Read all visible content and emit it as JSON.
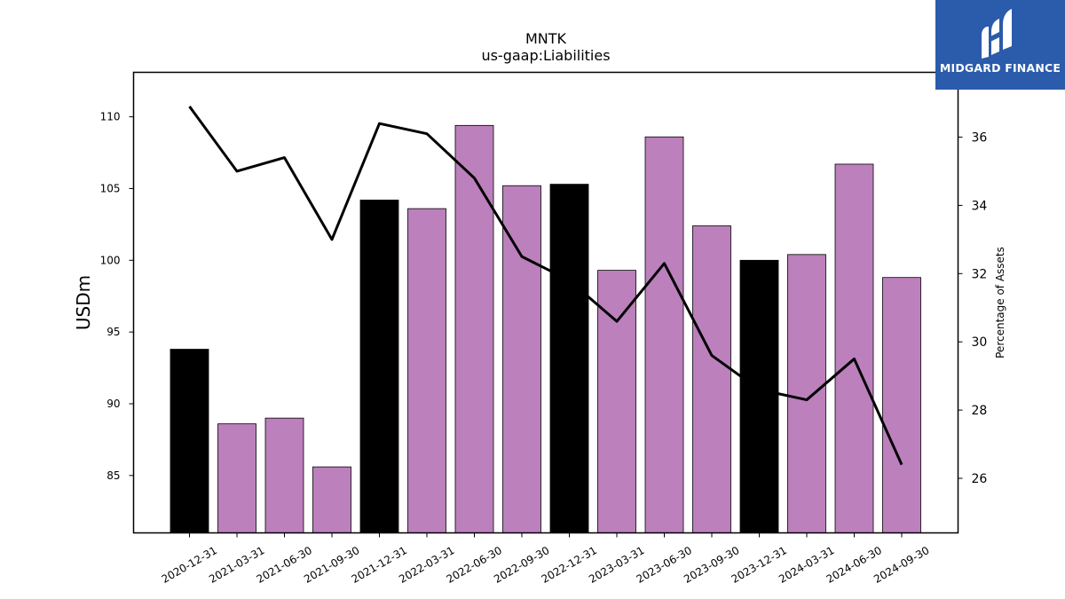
{
  "brand": {
    "name": "MIDGARD FINANCE",
    "color": "#2b5bab"
  },
  "chart_data": {
    "type": "bar",
    "title": "MNTK",
    "subtitle": "us-gaap:Liabilities",
    "ylabel": "USDm",
    "y2label": "Percentage of Assets",
    "categories": [
      "2020-12-31",
      "2021-03-31",
      "2021-06-30",
      "2021-09-30",
      "2021-12-31",
      "2022-03-31",
      "2022-06-30",
      "2022-09-30",
      "2022-12-31",
      "2023-03-31",
      "2023-06-30",
      "2023-09-30",
      "2023-12-31",
      "2024-03-31",
      "2024-06-30",
      "2024-09-30"
    ],
    "series": [
      {
        "axis": "left",
        "type": "bar",
        "values": [
          93.8,
          88.6,
          89.0,
          85.6,
          104.2,
          103.6,
          109.4,
          105.2,
          105.3,
          99.3,
          108.6,
          102.4,
          100.0,
          100.4,
          106.7,
          98.8
        ],
        "colors": [
          "#000000",
          "#bc80bd",
          "#bc80bd",
          "#bc80bd",
          "#000000",
          "#bc80bd",
          "#bc80bd",
          "#bc80bd",
          "#000000",
          "#bc80bd",
          "#bc80bd",
          "#bc80bd",
          "#000000",
          "#bc80bd",
          "#bc80bd",
          "#bc80bd"
        ]
      },
      {
        "axis": "right",
        "type": "line",
        "color": "#000000",
        "values": [
          36.9,
          35.0,
          35.4,
          33.0,
          36.4,
          36.1,
          34.8,
          32.5,
          31.8,
          30.6,
          32.3,
          29.6,
          28.6,
          28.3,
          29.5,
          26.4
        ]
      }
    ],
    "ylim": [
      81.0,
      113.1
    ],
    "y2lim": [
      24.4,
      37.9
    ],
    "yticks": [
      85,
      90,
      95,
      100,
      105,
      110
    ],
    "y2ticks": [
      26,
      28,
      30,
      32,
      34,
      36
    ],
    "grid": false,
    "legend": "none"
  }
}
